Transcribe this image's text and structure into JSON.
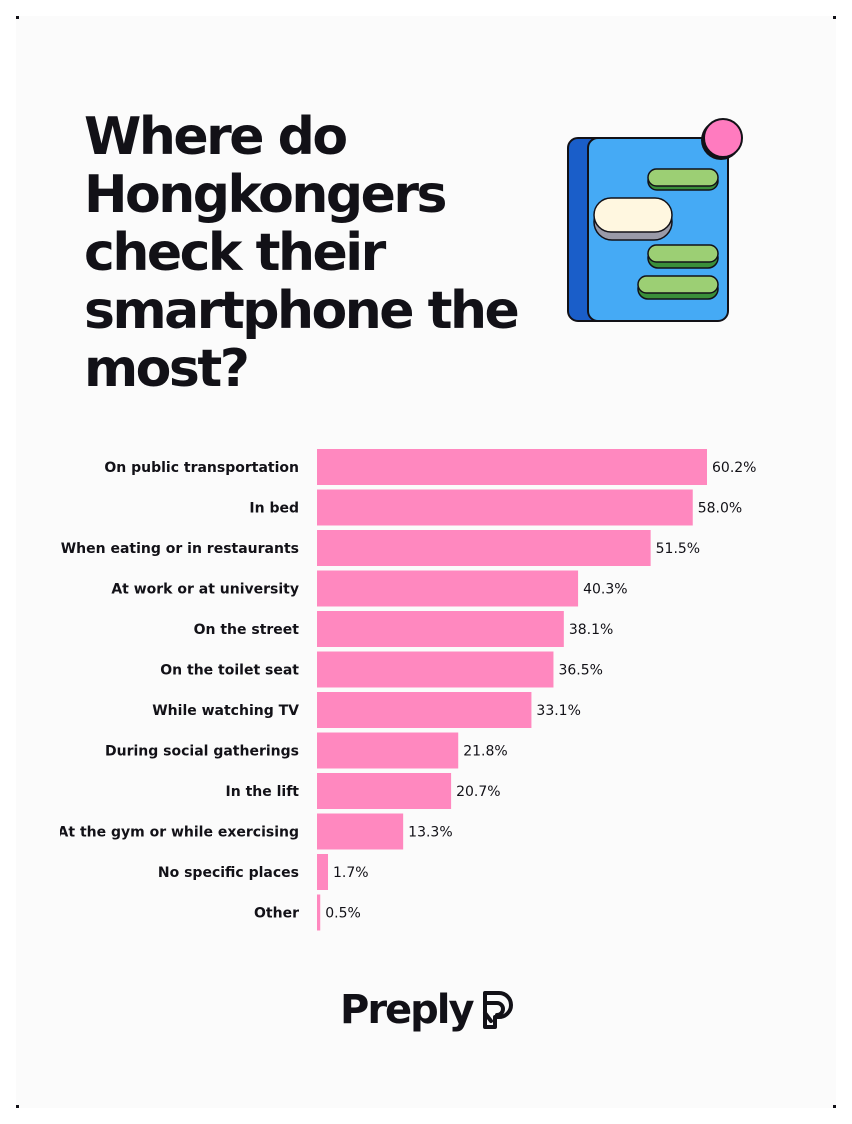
{
  "title": "Where do Hongkongers check their smartphone the most?",
  "brand": {
    "name": "Preply",
    "icon": "preply-logo-icon"
  },
  "illustration": {
    "icon": "phone-chat-icon",
    "colors": {
      "phone_body": "#45aaf5",
      "phone_side": "#1a5ec9",
      "bubble_green": "#9ccf74",
      "bubble_white": "#fff7e0",
      "notification": "#ff7bbf"
    }
  },
  "colors": {
    "bar": "#ff88bf",
    "text": "#121117",
    "background": "#fbfbfb"
  },
  "chart_data": {
    "type": "bar",
    "orientation": "horizontal",
    "title": "Where do Hongkongers check their smartphone the most?",
    "xlabel": "",
    "ylabel": "",
    "xlim": [
      0,
      60.2
    ],
    "grid": false,
    "legend": "none",
    "categories": [
      "On public transportation",
      "In bed",
      "When eating or in restaurants",
      "At work or at university",
      "On the street",
      "On the toilet seat",
      "While watching TV",
      "During social gatherings",
      "In the lift",
      "At the gym or while exercising",
      "No specific places",
      "Other"
    ],
    "values": [
      60.2,
      58.0,
      51.5,
      40.3,
      38.1,
      36.5,
      33.1,
      21.8,
      20.7,
      13.3,
      1.7,
      0.5
    ],
    "value_labels": [
      "60.2%",
      "58.0%",
      "51.5%",
      "40.3%",
      "38.1%",
      "36.5%",
      "33.1%",
      "21.8%",
      "20.7%",
      "13.3%",
      "1.7%",
      "0.5%"
    ]
  }
}
